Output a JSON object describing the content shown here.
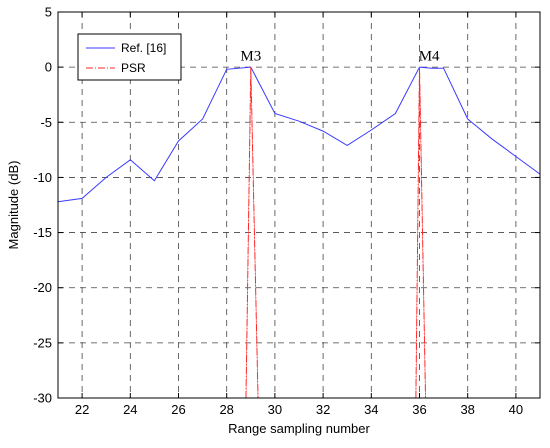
{
  "chart_data": {
    "type": "line",
    "title": "",
    "xlabel": "Range sampling number",
    "ylabel": "Magnitude (dB)",
    "xlim": [
      21,
      41
    ],
    "ylim": [
      -30,
      5
    ],
    "xticks": [
      22,
      24,
      26,
      28,
      30,
      32,
      34,
      36,
      38,
      40
    ],
    "yticks": [
      5,
      0,
      -5,
      -10,
      -15,
      -20,
      -25,
      -30
    ],
    "grid": true,
    "legend_position": "top-left",
    "series": [
      {
        "name": "Ref. [16]",
        "color": "#3b3bff",
        "style": "solid",
        "x": [
          21,
          22,
          23,
          24,
          25,
          26,
          27,
          28,
          29,
          30,
          31,
          32,
          33,
          34,
          35,
          36,
          36.5,
          37,
          38,
          39,
          40,
          41
        ],
        "y": [
          -12.2,
          -11.9,
          -10.0,
          -8.4,
          -10.3,
          -6.7,
          -4.7,
          -0.2,
          0.0,
          -4.2,
          -4.9,
          -5.8,
          -7.1,
          -5.7,
          -4.2,
          0.0,
          -0.1,
          -0.1,
          -4.7,
          -6.5,
          -8.1,
          -9.7
        ]
      },
      {
        "name": "PSR",
        "color": "#ff2a2a",
        "style": "dash-dot",
        "peaks": [
          {
            "x": 29,
            "y": 0,
            "left_base_x": 28.8,
            "right_base_x": 29.3
          },
          {
            "x": 36,
            "y": 0,
            "left_base_x": 35.85,
            "right_base_x": 36.25
          }
        ]
      }
    ],
    "annotations": [
      {
        "text": "M3",
        "x": 29.0,
        "y": 0.6
      },
      {
        "text": "M4",
        "x": 36.4,
        "y": 0.6
      }
    ]
  }
}
